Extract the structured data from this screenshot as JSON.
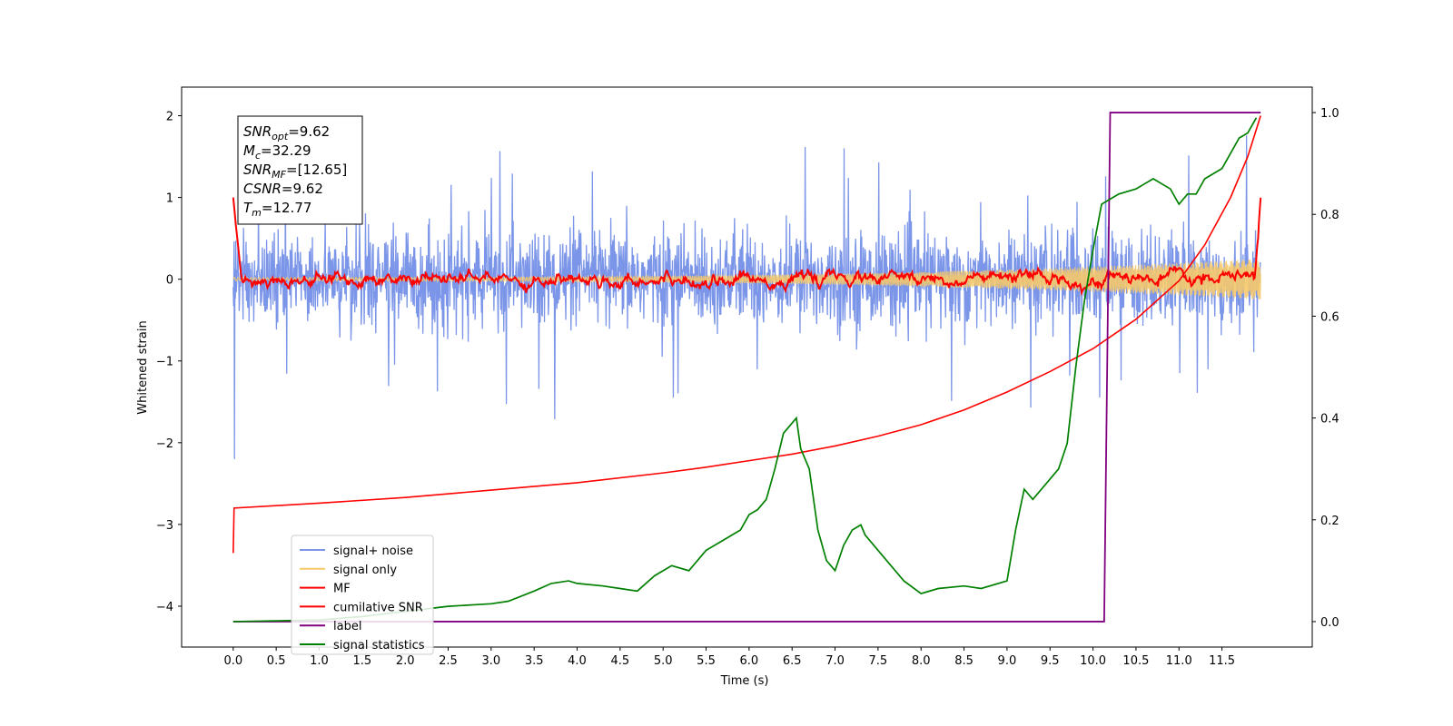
{
  "chart_data": {
    "type": "line",
    "xlabel": "Time (s)",
    "ylabel": "Whitened strain",
    "xlim": [
      -0.6,
      12.55
    ],
    "ylim": [
      -4.5,
      2.35
    ],
    "y2lim": [
      -0.05,
      1.05
    ],
    "x_ticks": [
      "0.0",
      "0.5",
      "1.0",
      "1.5",
      "2.0",
      "2.5",
      "3.0",
      "3.5",
      "4.0",
      "4.5",
      "5.0",
      "5.5",
      "6.0",
      "6.5",
      "7.0",
      "7.5",
      "8.0",
      "8.5",
      "9.0",
      "9.5",
      "10.0",
      "10.5",
      "11.0",
      "11.5"
    ],
    "y_ticks": [
      "2",
      "1",
      "0",
      "−1",
      "−2",
      "−3",
      "−4"
    ],
    "y2_ticks": [
      "1.0",
      "0.8",
      "0.6",
      "0.4",
      "0.2",
      "0.0"
    ],
    "annotation": [
      {
        "base": "SNR",
        "sub": "opt",
        "value": "=9.62"
      },
      {
        "base": "M",
        "sub": "c",
        "value": "=32.29"
      },
      {
        "base": "SNR",
        "sub": "MF",
        "value": "=[12.65]"
      },
      {
        "base": "CSNR",
        "sub": "",
        "value": "=9.62"
      },
      {
        "base": "T",
        "sub": "m",
        "value": "=12.77"
      }
    ],
    "legend_position": "lower-left",
    "legend": [
      {
        "label": "signal+ noise",
        "color": "#7b95e8"
      },
      {
        "label": "signal only",
        "color": "#f5c86a"
      },
      {
        "label": "MF",
        "color": "#ff0000"
      },
      {
        "label": "cumilative SNR",
        "color": "#ff0000"
      },
      {
        "label": "label",
        "color": "#800080"
      },
      {
        "label": "signal statistics",
        "color": "#008000"
      }
    ],
    "series": [
      {
        "name": "signal+ noise",
        "axis": "left",
        "color": "#7b95e8",
        "kind": "noise",
        "center": 0,
        "amplitude_typical": 0.55,
        "amplitude_max": 1.85,
        "x_range": [
          0.0,
          11.95
        ],
        "start_spike": -2.2
      },
      {
        "name": "signal only",
        "axis": "left",
        "color": "#f5c86a",
        "kind": "chirp",
        "x_range": [
          0.0,
          11.95
        ],
        "amplitude_start": 0.02,
        "amplitude_end": 0.25
      },
      {
        "name": "MF",
        "axis": "left",
        "color": "#ff0000",
        "kind": "mf",
        "x_range": [
          0.0,
          11.95
        ],
        "start_value": 1.0,
        "ripple": 0.08
      },
      {
        "name": "cumilative SNR",
        "axis": "left",
        "color": "#ff0000",
        "x": [
          0.0,
          0.01,
          1.0,
          2.0,
          3.0,
          4.0,
          5.0,
          5.5,
          6.0,
          6.5,
          7.0,
          7.5,
          8.0,
          8.5,
          9.0,
          9.5,
          10.0,
          10.5,
          11.0,
          11.3,
          11.6,
          11.8,
          11.95
        ],
        "y": [
          -3.35,
          -2.8,
          -2.74,
          -2.67,
          -2.58,
          -2.49,
          -2.37,
          -2.3,
          -2.22,
          -2.14,
          -2.04,
          -1.92,
          -1.78,
          -1.6,
          -1.38,
          -1.13,
          -0.85,
          -0.49,
          -0.02,
          0.42,
          1.0,
          1.5,
          2.0
        ]
      },
      {
        "name": "label",
        "axis": "right",
        "color": "#800080",
        "x": [
          0.0,
          10.13,
          10.2,
          11.95
        ],
        "y": [
          0.0,
          0.0,
          1.0,
          1.0
        ]
      },
      {
        "name": "signal statistics",
        "axis": "right",
        "color": "#008000",
        "x": [
          0.0,
          1.0,
          1.5,
          2.0,
          2.5,
          3.0,
          3.2,
          3.5,
          3.7,
          3.9,
          4.0,
          4.3,
          4.5,
          4.7,
          4.9,
          5.1,
          5.3,
          5.5,
          5.7,
          5.9,
          6.0,
          6.1,
          6.2,
          6.3,
          6.4,
          6.45,
          6.55,
          6.6,
          6.7,
          6.8,
          6.9,
          7.0,
          7.1,
          7.2,
          7.3,
          7.35,
          7.45,
          7.6,
          7.8,
          8.0,
          8.2,
          8.5,
          8.7,
          9.0,
          9.1,
          9.2,
          9.3,
          9.5,
          9.6,
          9.7,
          9.8,
          9.9,
          10.0,
          10.1,
          10.2,
          10.3,
          10.5,
          10.6,
          10.7,
          10.8,
          10.9,
          11.0,
          11.1,
          11.2,
          11.3,
          11.5,
          11.6,
          11.7,
          11.8,
          11.9
        ],
        "y": [
          0.0,
          0.003,
          0.01,
          0.02,
          0.03,
          0.035,
          0.04,
          0.06,
          0.075,
          0.08,
          0.075,
          0.07,
          0.065,
          0.06,
          0.09,
          0.11,
          0.1,
          0.14,
          0.16,
          0.18,
          0.21,
          0.22,
          0.24,
          0.3,
          0.37,
          0.38,
          0.4,
          0.34,
          0.3,
          0.18,
          0.12,
          0.1,
          0.15,
          0.18,
          0.19,
          0.17,
          0.15,
          0.12,
          0.08,
          0.055,
          0.065,
          0.07,
          0.065,
          0.08,
          0.18,
          0.26,
          0.24,
          0.28,
          0.3,
          0.35,
          0.5,
          0.63,
          0.73,
          0.82,
          0.83,
          0.84,
          0.85,
          0.86,
          0.87,
          0.86,
          0.85,
          0.82,
          0.84,
          0.84,
          0.87,
          0.89,
          0.92,
          0.95,
          0.96,
          0.99
        ]
      }
    ]
  }
}
